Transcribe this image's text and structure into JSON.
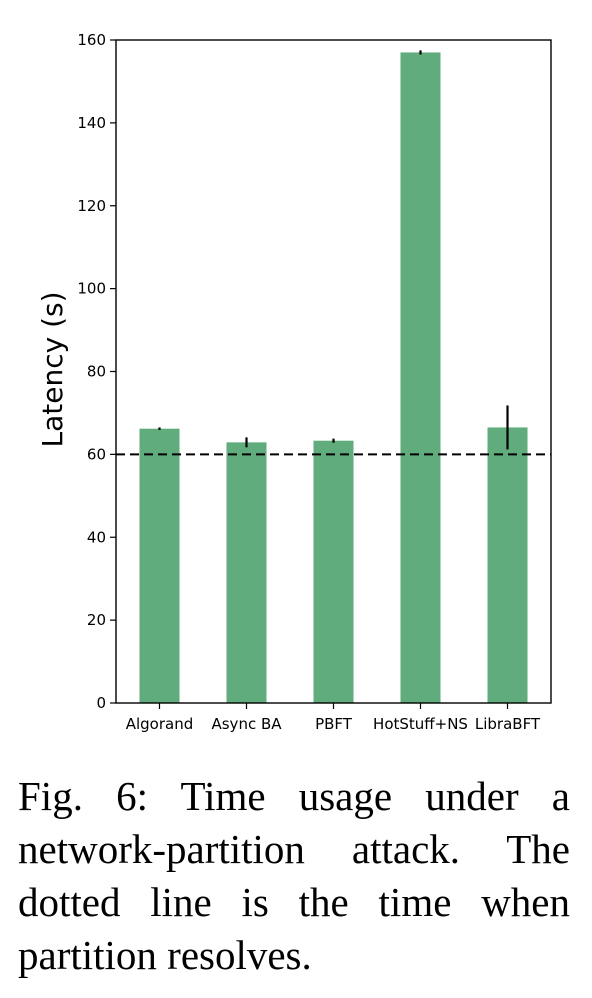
{
  "chart_data": {
    "type": "bar",
    "categories": [
      "Algorand",
      "Async BA",
      "PBFT",
      "HotStuff+NS",
      "LibraBFT"
    ],
    "values": [
      66.2,
      62.9,
      63.3,
      157.0,
      66.5
    ],
    "error_bars": [
      0.3,
      1.2,
      0.5,
      0.5,
      5.3
    ],
    "ylabel": "Latency (s)",
    "xlabel": "",
    "ylim": [
      0,
      160
    ],
    "yticks": [
      0,
      20,
      40,
      60,
      80,
      100,
      120,
      140,
      160
    ],
    "reference_line": {
      "value": 60,
      "style": "dashed"
    },
    "bar_color": "#61ac7c",
    "grid": false
  },
  "caption": {
    "text": "Fig. 6: Time usage under a network-partition attack. The dotted line is the time when partition resolves."
  }
}
